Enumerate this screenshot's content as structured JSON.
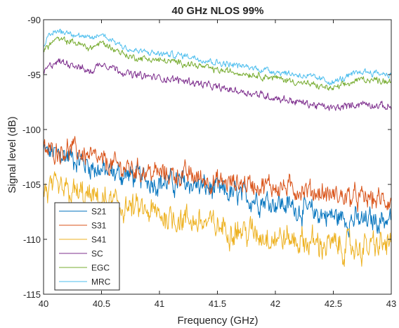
{
  "chart_data": {
    "type": "line",
    "title": "40 GHz NLOS 99%",
    "xlabel": "Frequency (GHz)",
    "ylabel": "Signal level (dB)",
    "xlim": [
      40,
      43
    ],
    "ylim": [
      -115,
      -90
    ],
    "xticks": [
      "40",
      "40.5",
      "41",
      "41.5",
      "42",
      "42.5",
      "43"
    ],
    "yticks": [
      "-90",
      "-95",
      "-100",
      "-105",
      "-110",
      "-115"
    ],
    "grid": false,
    "legend": "bottom-left",
    "series": [
      {
        "name": "S21",
        "color": "#0072BD",
        "noise": 1.1,
        "points": [
          [
            40.0,
            -102.0
          ],
          [
            40.25,
            -102.5
          ],
          [
            40.5,
            -103.8
          ],
          [
            40.75,
            -104.2
          ],
          [
            41.0,
            -104.8
          ],
          [
            41.25,
            -104.9
          ],
          [
            41.5,
            -105.6
          ],
          [
            41.75,
            -106.2
          ],
          [
            42.0,
            -106.6
          ],
          [
            42.25,
            -107.4
          ],
          [
            42.5,
            -107.9
          ],
          [
            42.75,
            -108.4
          ],
          [
            43.0,
            -108.1
          ]
        ]
      },
      {
        "name": "S31",
        "color": "#D95319",
        "noise": 1.0,
        "points": [
          [
            40.0,
            -102.0
          ],
          [
            40.25,
            -101.8
          ],
          [
            40.5,
            -103.0
          ],
          [
            40.75,
            -103.6
          ],
          [
            41.0,
            -104.0
          ],
          [
            41.25,
            -104.2
          ],
          [
            41.5,
            -104.8
          ],
          [
            41.75,
            -104.9
          ],
          [
            42.0,
            -105.2
          ],
          [
            42.25,
            -105.5
          ],
          [
            42.5,
            -106.0
          ],
          [
            42.75,
            -106.3
          ],
          [
            43.0,
            -106.5
          ]
        ]
      },
      {
        "name": "S41",
        "color": "#EDB120",
        "noise": 1.3,
        "points": [
          [
            40.0,
            -105.5
          ],
          [
            40.25,
            -105.8
          ],
          [
            40.5,
            -106.5
          ],
          [
            40.75,
            -107.2
          ],
          [
            41.0,
            -107.8
          ],
          [
            41.25,
            -108.2
          ],
          [
            41.5,
            -108.8
          ],
          [
            41.75,
            -109.3
          ],
          [
            42.0,
            -109.8
          ],
          [
            42.25,
            -110.2
          ],
          [
            42.5,
            -110.6
          ],
          [
            42.75,
            -110.8
          ],
          [
            43.0,
            -110.4
          ]
        ]
      },
      {
        "name": "SC",
        "color": "#7E2F8E",
        "noise": 0.35,
        "points": [
          [
            40.0,
            -94.8
          ],
          [
            40.1,
            -93.8
          ],
          [
            40.25,
            -94.0
          ],
          [
            40.4,
            -94.8
          ],
          [
            40.5,
            -93.9
          ],
          [
            40.75,
            -95.0
          ],
          [
            41.0,
            -95.3
          ],
          [
            41.25,
            -95.6
          ],
          [
            41.5,
            -96.2
          ],
          [
            41.75,
            -96.6
          ],
          [
            42.0,
            -97.1
          ],
          [
            42.25,
            -97.6
          ],
          [
            42.5,
            -98.1
          ],
          [
            42.75,
            -97.6
          ],
          [
            43.0,
            -98.0
          ]
        ]
      },
      {
        "name": "EGC",
        "color": "#77AC30",
        "noise": 0.3,
        "points": [
          [
            40.0,
            -92.8
          ],
          [
            40.1,
            -91.8
          ],
          [
            40.25,
            -92.0
          ],
          [
            40.4,
            -92.6
          ],
          [
            40.5,
            -92.1
          ],
          [
            40.75,
            -93.4
          ],
          [
            41.0,
            -93.7
          ],
          [
            41.25,
            -94.0
          ],
          [
            41.5,
            -94.6
          ],
          [
            41.75,
            -94.9
          ],
          [
            42.0,
            -95.3
          ],
          [
            42.25,
            -95.8
          ],
          [
            42.5,
            -96.3
          ],
          [
            42.75,
            -95.4
          ],
          [
            43.0,
            -95.6
          ]
        ]
      },
      {
        "name": "MRC",
        "color": "#4DBEEE",
        "noise": 0.3,
        "points": [
          [
            40.0,
            -92.2
          ],
          [
            40.1,
            -91.0
          ],
          [
            40.25,
            -91.2
          ],
          [
            40.4,
            -91.8
          ],
          [
            40.5,
            -91.3
          ],
          [
            40.75,
            -92.8
          ],
          [
            41.0,
            -93.1
          ],
          [
            41.25,
            -93.3
          ],
          [
            41.5,
            -93.9
          ],
          [
            41.75,
            -94.3
          ],
          [
            42.0,
            -94.7
          ],
          [
            42.25,
            -95.1
          ],
          [
            42.5,
            -95.7
          ],
          [
            42.75,
            -94.7
          ],
          [
            43.0,
            -95.0
          ]
        ]
      }
    ]
  }
}
